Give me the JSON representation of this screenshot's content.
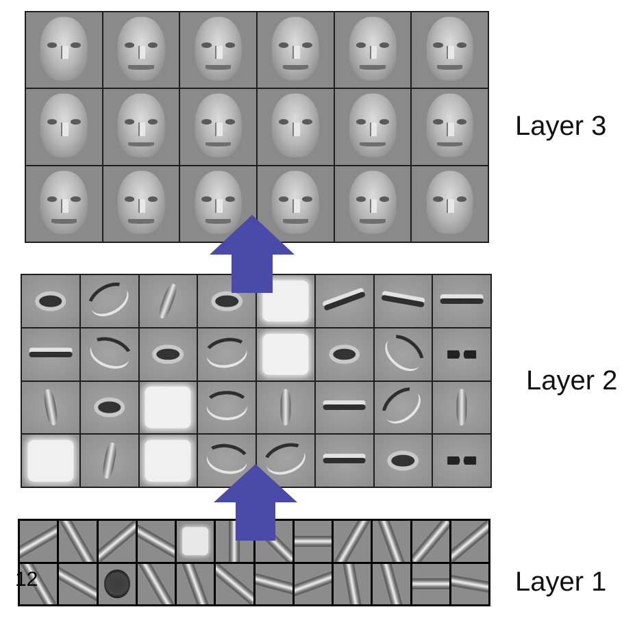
{
  "labels": {
    "layer3": "Layer 3",
    "layer2": "Layer 2",
    "layer1": "Layer 1"
  },
  "corner_mark": "12",
  "colors": {
    "arrow": "#4a4aa8",
    "grid_border": "#1e1e1e"
  },
  "layer3_faces": [
    {
      "mouth": false
    },
    {
      "mouth": true
    },
    {
      "mouth": true
    },
    {
      "mouth": true
    },
    {
      "mouth": true
    },
    {
      "mouth": true
    },
    {
      "mouth": false
    },
    {
      "mouth": true
    },
    {
      "mouth": true
    },
    {
      "mouth": false
    },
    {
      "mouth": true
    },
    {
      "mouth": true
    },
    {
      "mouth": true
    },
    {
      "mouth": true
    },
    {
      "mouth": true
    },
    {
      "mouth": true
    },
    {
      "mouth": true
    },
    {
      "mouth": false
    }
  ],
  "layer2_parts": [
    {
      "kind": "eye",
      "rot": 0
    },
    {
      "kind": "curve",
      "rot": -30
    },
    {
      "kind": "nose",
      "rot": 20
    },
    {
      "kind": "eye",
      "rot": 0
    },
    {
      "kind": "bright",
      "rot": 0
    },
    {
      "kind": "line",
      "rot": -20
    },
    {
      "kind": "line",
      "rot": 10
    },
    {
      "kind": "line",
      "rot": 0
    },
    {
      "kind": "line",
      "rot": 0
    },
    {
      "kind": "curve",
      "rot": 20
    },
    {
      "kind": "eye",
      "rot": 0
    },
    {
      "kind": "curve",
      "rot": -10
    },
    {
      "kind": "bright",
      "rot": 0
    },
    {
      "kind": "eye",
      "rot": 0
    },
    {
      "kind": "curve",
      "rot": 40
    },
    {
      "kind": "dots",
      "rot": 0
    },
    {
      "kind": "nose",
      "rot": -10
    },
    {
      "kind": "eye",
      "rot": 0
    },
    {
      "kind": "bright",
      "rot": 0
    },
    {
      "kind": "curve",
      "rot": 0
    },
    {
      "kind": "nose",
      "rot": 0
    },
    {
      "kind": "line",
      "rot": 0
    },
    {
      "kind": "curve",
      "rot": -40
    },
    {
      "kind": "nose",
      "rot": 0
    },
    {
      "kind": "bright",
      "rot": 0
    },
    {
      "kind": "nose",
      "rot": 10
    },
    {
      "kind": "bright",
      "rot": 0
    },
    {
      "kind": "curve",
      "rot": 10
    },
    {
      "kind": "curve",
      "rot": -20
    },
    {
      "kind": "line",
      "rot": 0
    },
    {
      "kind": "eye",
      "rot": 0
    },
    {
      "kind": "dots",
      "rot": 0
    }
  ],
  "layer1_edges": [
    {
      "kind": "stripe",
      "rot": -30
    },
    {
      "kind": "stripe",
      "rot": 60
    },
    {
      "kind": "stripe",
      "rot": -40
    },
    {
      "kind": "stripe",
      "rot": 30
    },
    {
      "kind": "square",
      "rot": 0
    },
    {
      "kind": "stripe",
      "rot": 90
    },
    {
      "kind": "stripe",
      "rot": 45
    },
    {
      "kind": "stripe",
      "rot": 0
    },
    {
      "kind": "stripe",
      "rot": -60
    },
    {
      "kind": "stripe",
      "rot": 70
    },
    {
      "kind": "stripe",
      "rot": -50
    },
    {
      "kind": "stripe",
      "rot": -40
    },
    {
      "kind": "stripe",
      "rot": 60
    },
    {
      "kind": "stripe",
      "rot": 30
    },
    {
      "kind": "circle",
      "rot": 0
    },
    {
      "kind": "stripe",
      "rot": 60
    },
    {
      "kind": "stripe",
      "rot": 70
    },
    {
      "kind": "stripe",
      "rot": 40
    },
    {
      "kind": "stripe",
      "rot": 15
    },
    {
      "kind": "stripe",
      "rot": -20
    },
    {
      "kind": "stripe",
      "rot": 80
    },
    {
      "kind": "stripe",
      "rot": 75
    },
    {
      "kind": "stripe",
      "rot": 0
    },
    {
      "kind": "stripe",
      "rot": 10
    }
  ]
}
